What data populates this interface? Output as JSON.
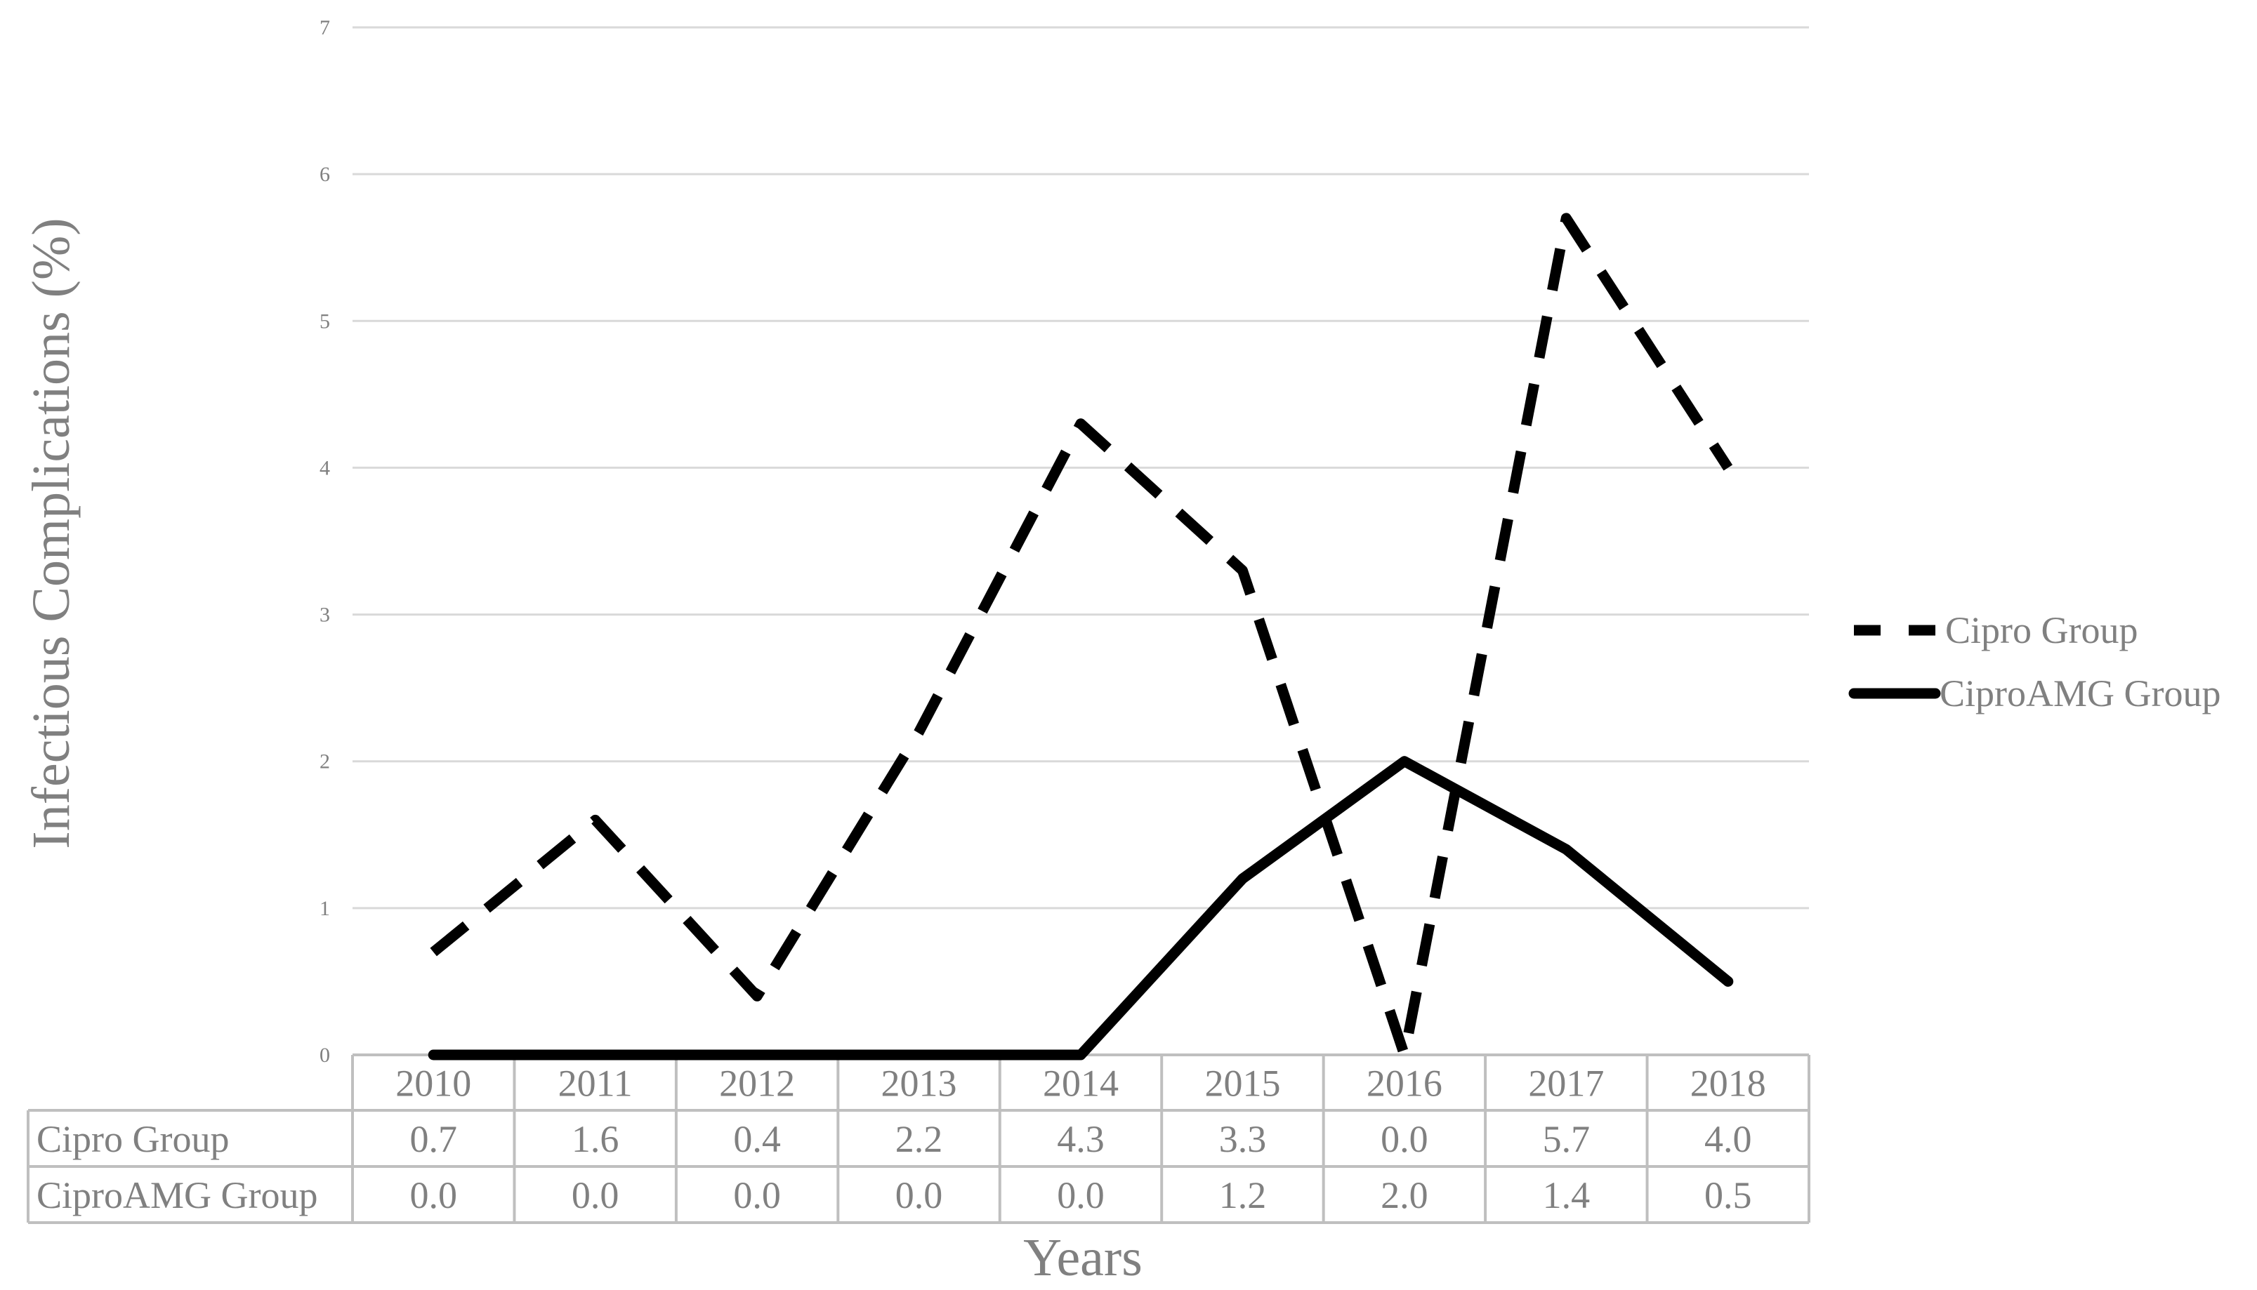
{
  "chart_data": {
    "type": "line",
    "categories": [
      "2010",
      "2011",
      "2012",
      "2013",
      "2014",
      "2015",
      "2016",
      "2017",
      "2018"
    ],
    "series": [
      {
        "name": "Cipro Group",
        "values": [
          0.7,
          1.6,
          0.4,
          2.2,
          4.3,
          3.3,
          0.0,
          5.7,
          4.0
        ],
        "style": "dashed",
        "color": "#000000"
      },
      {
        "name": "CiproAMG Group",
        "values": [
          0.0,
          0.0,
          0.0,
          0.0,
          0.0,
          1.2,
          2.0,
          1.4,
          0.5
        ],
        "style": "solid",
        "color": "#000000"
      }
    ],
    "table_rows": [
      {
        "label": "Cipro Group",
        "cells": [
          "0.7",
          "1.6",
          "0.4",
          "2.2",
          "4.3",
          "3.3",
          "0.0",
          "5.7",
          "4.0"
        ]
      },
      {
        "label": "CiproAMG Group",
        "cells": [
          "0.0",
          "0.0",
          "0.0",
          "0.0",
          "0.0",
          "1.2",
          "2.0",
          "1.4",
          "0.5"
        ]
      }
    ],
    "yticks": [
      "0",
      "1",
      "2",
      "3",
      "4",
      "5",
      "6",
      "7"
    ],
    "ylim": [
      0,
      7
    ],
    "xlabel": "Years",
    "ylabel": "Infectious Complications (%)",
    "grid": true,
    "legend_position": "right",
    "colors": {
      "text": "#808080",
      "grid": "#d9d9d9",
      "table_border": "#bfbfbf",
      "line": "#000000"
    }
  }
}
